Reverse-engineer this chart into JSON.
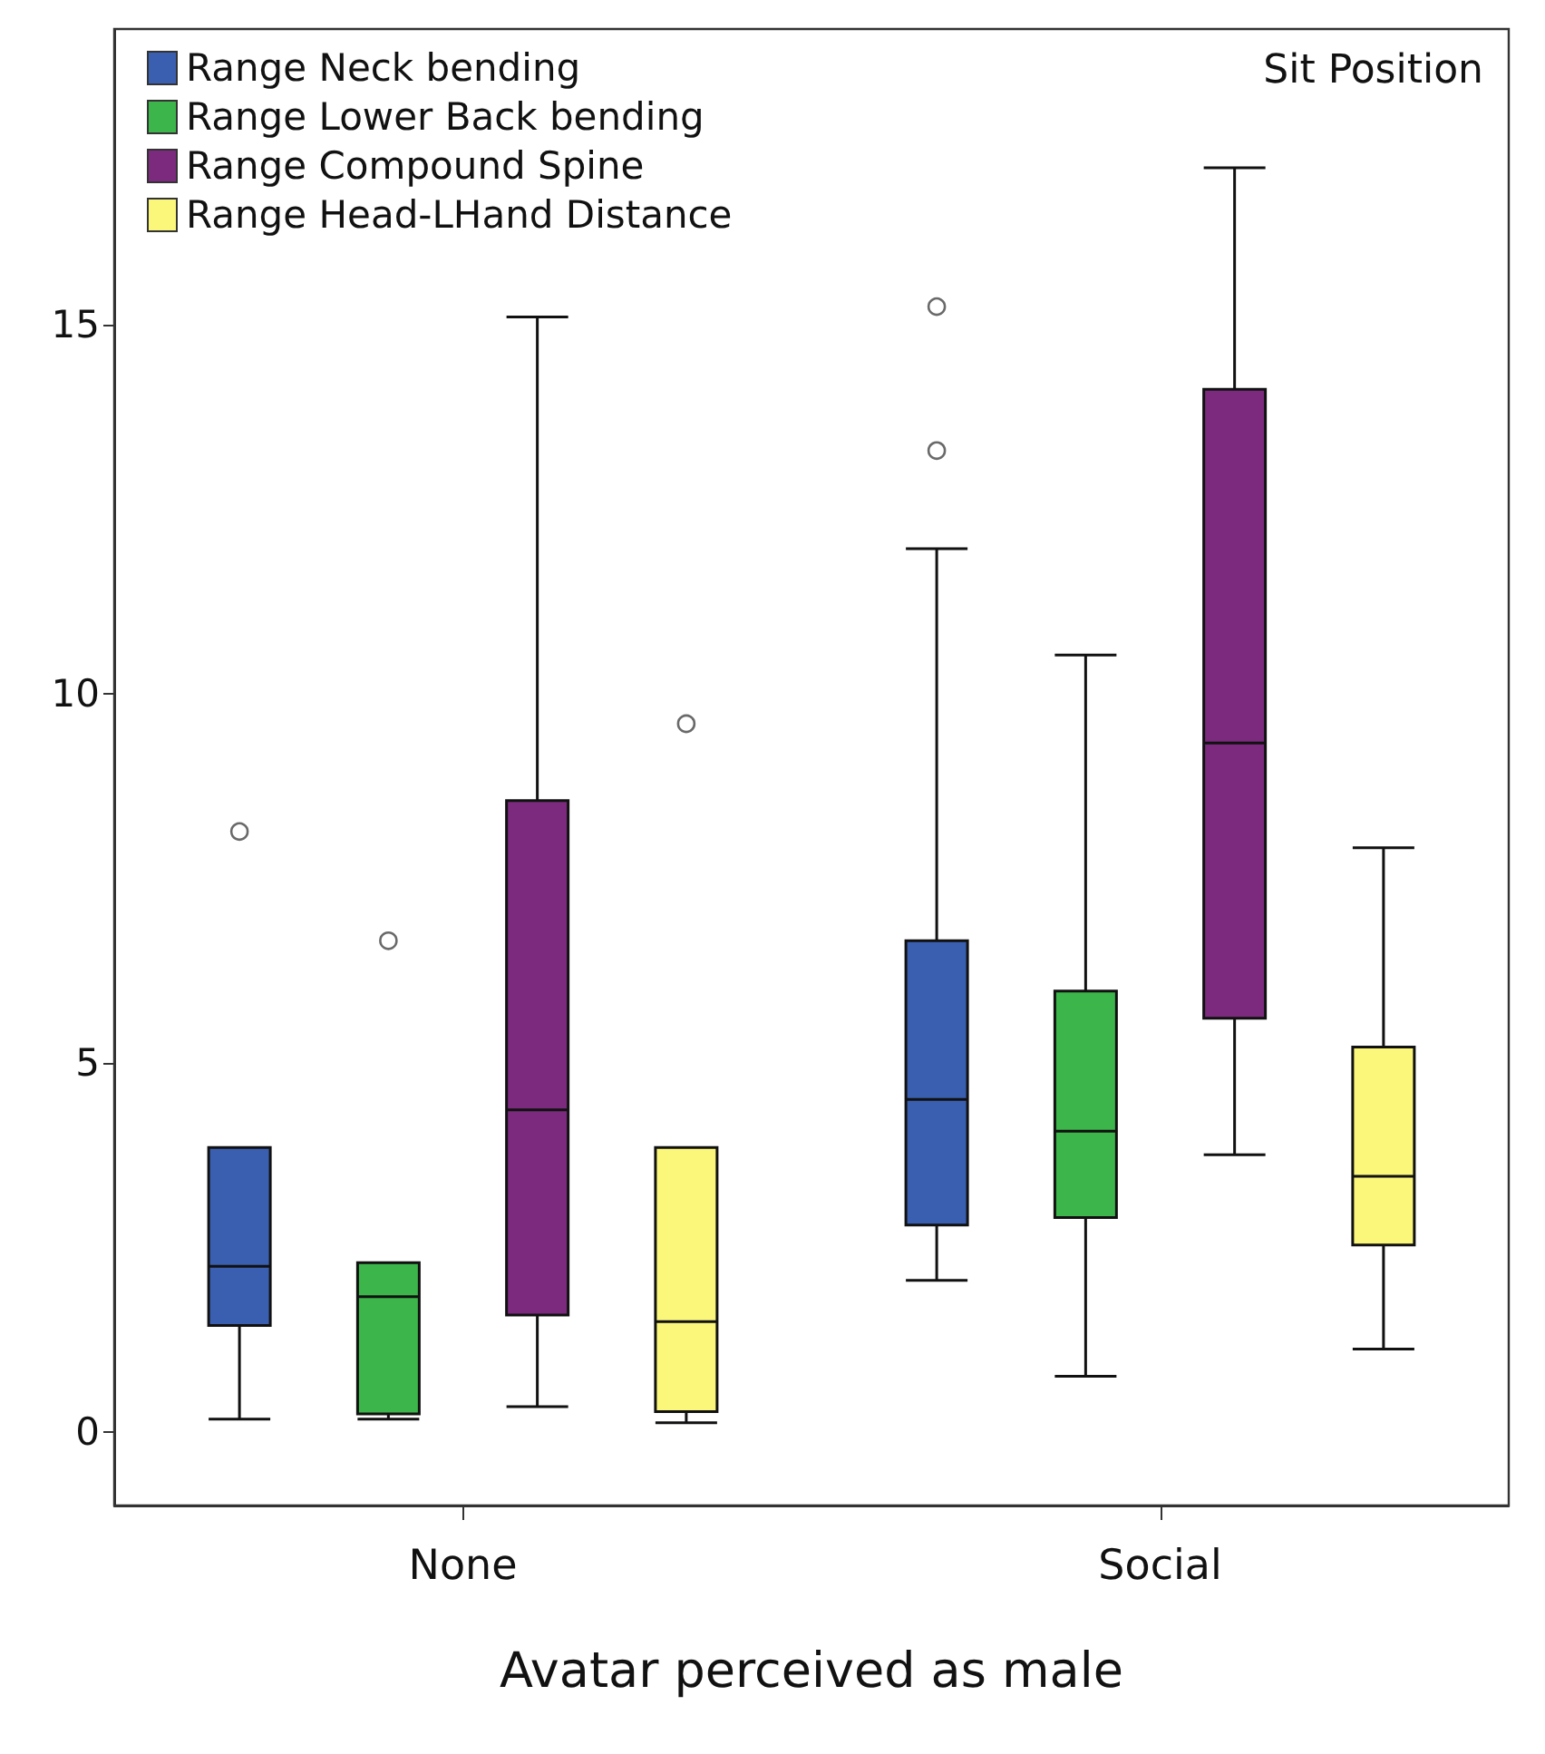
{
  "chart_data": {
    "type": "box",
    "xlabel": "Avatar perceived as male",
    "categories": [
      "None",
      "Social"
    ],
    "ylim": [
      -1,
      19
    ],
    "yticks": [
      0,
      5,
      10,
      15
    ],
    "legend": "top left",
    "annotations": [
      "Sit Position"
    ],
    "series": [
      {
        "name": "Range Neck bending",
        "color": "#3a5fb0",
        "boxes": [
          {
            "low": 0.17,
            "q1": 1.44,
            "median": 2.24,
            "q3": 3.85,
            "high": 3.85,
            "outliers": [
              8.13
            ]
          },
          {
            "low": 2.05,
            "q1": 2.8,
            "median": 4.5,
            "q3": 6.65,
            "high": 11.96,
            "outliers": [
              13.29,
              15.24
            ]
          }
        ]
      },
      {
        "name": "Range Lower Back bending",
        "color": "#3cb54a",
        "boxes": [
          {
            "low": 0.17,
            "q1": 0.24,
            "median": 1.83,
            "q3": 2.29,
            "high": 2.29,
            "outliers": [
              6.65
            ]
          },
          {
            "low": 0.75,
            "q1": 2.9,
            "median": 4.07,
            "q3": 5.97,
            "high": 10.52
          }
        ]
      },
      {
        "name": "Range Compound Spine",
        "color": "#7b2a7e",
        "boxes": [
          {
            "low": 0.34,
            "q1": 1.58,
            "median": 4.36,
            "q3": 8.55,
            "high": 15.1
          },
          {
            "low": 3.75,
            "q1": 5.6,
            "median": 9.33,
            "q3": 14.12,
            "high": 17.12
          }
        ]
      },
      {
        "name": "Range Head-LHand Distance",
        "color": "#fbf77a",
        "boxes": [
          {
            "low": 0.12,
            "q1": 0.27,
            "median": 1.49,
            "q3": 3.85,
            "high": 3.85,
            "outliers": [
              9.59
            ]
          },
          {
            "low": 1.12,
            "q1": 2.53,
            "median": 3.46,
            "q3": 5.21,
            "high": 7.91
          }
        ]
      }
    ]
  }
}
